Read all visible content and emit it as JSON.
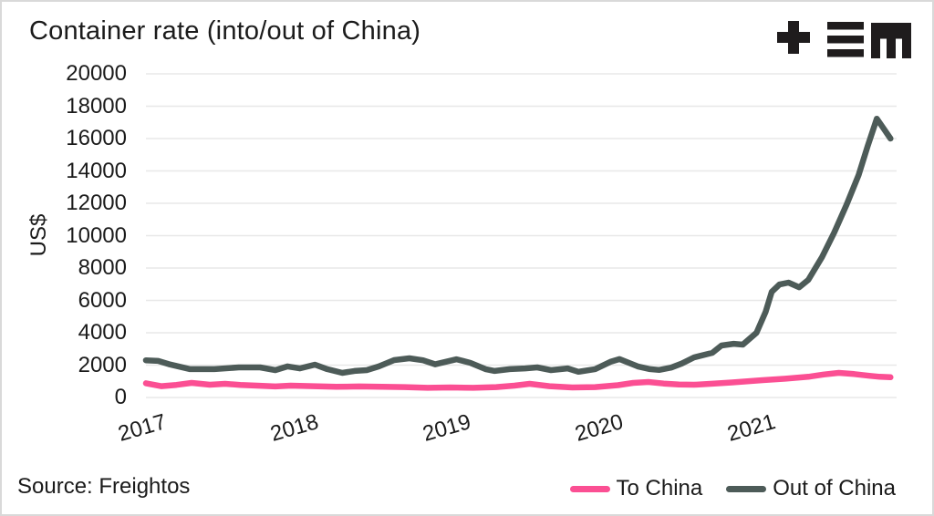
{
  "header": {
    "title": "Container rate (into/out of China)"
  },
  "source_note": "Source: Freightos",
  "colors": {
    "to_china": "#fb4f93",
    "out_of_china": "#4d5b58",
    "gridline": "#e8e8e8",
    "text": "#1b1b1b",
    "logo": "#1f1c1d"
  },
  "legend": {
    "items": [
      {
        "label": "To China",
        "color": "#fb4f93"
      },
      {
        "label": "Out of China",
        "color": "#4d5b58"
      }
    ]
  },
  "chart_data": {
    "type": "line",
    "title": "Container rate (into/out of China)",
    "xlabel": "",
    "ylabel": "US$",
    "ylim": [
      0,
      20000
    ],
    "y_ticks": [
      0,
      2000,
      4000,
      6000,
      8000,
      10000,
      12000,
      14000,
      16000,
      18000,
      20000
    ],
    "x_ticks": [
      2017,
      2018,
      2019,
      2020,
      2021
    ],
    "x_range": [
      2017.0,
      2021.93
    ],
    "grid": "horizontal",
    "legend_position": "bottom-right",
    "series": [
      {
        "name": "To China",
        "color": "#fb4f93",
        "points": [
          [
            2017.0,
            880
          ],
          [
            2017.1,
            700
          ],
          [
            2017.2,
            780
          ],
          [
            2017.3,
            900
          ],
          [
            2017.42,
            790
          ],
          [
            2017.52,
            845
          ],
          [
            2017.62,
            780
          ],
          [
            2017.73,
            730
          ],
          [
            2017.85,
            680
          ],
          [
            2017.95,
            730
          ],
          [
            2018.1,
            700
          ],
          [
            2018.25,
            660
          ],
          [
            2018.4,
            680
          ],
          [
            2018.55,
            660
          ],
          [
            2018.7,
            640
          ],
          [
            2018.85,
            600
          ],
          [
            2019.0,
            620
          ],
          [
            2019.15,
            600
          ],
          [
            2019.3,
            640
          ],
          [
            2019.42,
            730
          ],
          [
            2019.52,
            845
          ],
          [
            2019.65,
            700
          ],
          [
            2019.8,
            620
          ],
          [
            2019.95,
            640
          ],
          [
            2020.1,
            760
          ],
          [
            2020.2,
            900
          ],
          [
            2020.3,
            960
          ],
          [
            2020.4,
            860
          ],
          [
            2020.5,
            800
          ],
          [
            2020.6,
            790
          ],
          [
            2020.72,
            850
          ],
          [
            2020.85,
            930
          ],
          [
            2020.95,
            1000
          ],
          [
            2021.05,
            1070
          ],
          [
            2021.2,
            1160
          ],
          [
            2021.35,
            1280
          ],
          [
            2021.45,
            1420
          ],
          [
            2021.55,
            1520
          ],
          [
            2021.65,
            1450
          ],
          [
            2021.75,
            1340
          ],
          [
            2021.82,
            1280
          ],
          [
            2021.89,
            1250
          ]
        ]
      },
      {
        "name": "Out of China",
        "color": "#4d5b58",
        "points": [
          [
            2017.0,
            2300
          ],
          [
            2017.08,
            2260
          ],
          [
            2017.15,
            2060
          ],
          [
            2017.29,
            1750
          ],
          [
            2017.45,
            1750
          ],
          [
            2017.61,
            1860
          ],
          [
            2017.75,
            1860
          ],
          [
            2017.85,
            1690
          ],
          [
            2017.93,
            1920
          ],
          [
            2018.01,
            1800
          ],
          [
            2018.11,
            2030
          ],
          [
            2018.19,
            1750
          ],
          [
            2018.29,
            1520
          ],
          [
            2018.37,
            1640
          ],
          [
            2018.45,
            1690
          ],
          [
            2018.53,
            1920
          ],
          [
            2018.63,
            2310
          ],
          [
            2018.73,
            2420
          ],
          [
            2018.82,
            2300
          ],
          [
            2018.9,
            2050
          ],
          [
            2019.04,
            2360
          ],
          [
            2019.13,
            2140
          ],
          [
            2019.23,
            1750
          ],
          [
            2019.29,
            1640
          ],
          [
            2019.39,
            1750
          ],
          [
            2019.49,
            1800
          ],
          [
            2019.57,
            1860
          ],
          [
            2019.66,
            1690
          ],
          [
            2019.77,
            1800
          ],
          [
            2019.84,
            1590
          ],
          [
            2019.95,
            1750
          ],
          [
            2020.05,
            2200
          ],
          [
            2020.11,
            2370
          ],
          [
            2020.23,
            1920
          ],
          [
            2020.31,
            1750
          ],
          [
            2020.37,
            1700
          ],
          [
            2020.45,
            1850
          ],
          [
            2020.52,
            2100
          ],
          [
            2020.6,
            2480
          ],
          [
            2020.72,
            2760
          ],
          [
            2020.78,
            3210
          ],
          [
            2020.86,
            3320
          ],
          [
            2020.92,
            3270
          ],
          [
            2021.01,
            4000
          ],
          [
            2021.07,
            5290
          ],
          [
            2021.11,
            6530
          ],
          [
            2021.16,
            6980
          ],
          [
            2021.22,
            7100
          ],
          [
            2021.29,
            6810
          ],
          [
            2021.35,
            7270
          ],
          [
            2021.44,
            8670
          ],
          [
            2021.52,
            10190
          ],
          [
            2021.6,
            11880
          ],
          [
            2021.68,
            13740
          ],
          [
            2021.74,
            15540
          ],
          [
            2021.8,
            17230
          ],
          [
            2021.85,
            16550
          ],
          [
            2021.89,
            16000
          ]
        ]
      }
    ]
  }
}
